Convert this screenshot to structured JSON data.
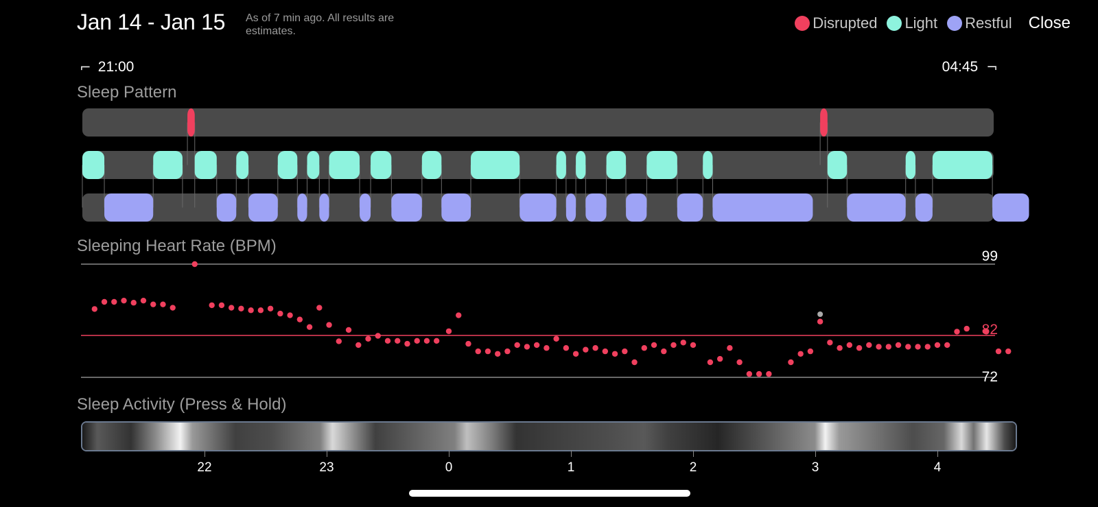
{
  "header": {
    "date_range": "Jan 14 - Jan 15",
    "as_of": "As of 7 min ago. All results are estimates.",
    "close_label": "Close"
  },
  "legend": [
    {
      "label": "Disrupted",
      "color": "#f0405e"
    },
    {
      "label": "Light",
      "color": "#8ef3de"
    },
    {
      "label": "Restful",
      "color": "#9ea3f6"
    }
  ],
  "time_range": {
    "start": "21:00",
    "end": "04:45"
  },
  "sleep_pattern": {
    "title": "Sleep Pattern",
    "segments_hours": {
      "disrupted": [
        [
          21.86,
          21.92
        ],
        [
          3.04,
          3.1
        ]
      ],
      "light": [
        [
          21.0,
          21.18
        ],
        [
          21.58,
          21.82
        ],
        [
          21.92,
          22.1
        ],
        [
          22.26,
          22.36
        ],
        [
          22.6,
          22.76
        ],
        [
          22.84,
          22.94
        ],
        [
          23.02,
          23.27
        ],
        [
          23.36,
          23.53
        ],
        [
          23.78,
          23.94
        ],
        [
          0.18,
          0.58
        ],
        [
          0.88,
          0.96
        ],
        [
          1.04,
          1.12
        ],
        [
          1.29,
          1.45
        ],
        [
          1.62,
          1.87
        ],
        [
          2.08,
          2.16
        ],
        [
          3.1,
          3.26
        ],
        [
          3.74,
          3.82
        ],
        [
          3.96,
          4.45
        ]
      ],
      "restful": [
        [
          21.18,
          21.58
        ],
        [
          22.1,
          22.26
        ],
        [
          22.36,
          22.6
        ],
        [
          22.76,
          22.84
        ],
        [
          22.94,
          23.02
        ],
        [
          23.27,
          23.36
        ],
        [
          23.53,
          23.78
        ],
        [
          23.94,
          0.18
        ],
        [
          0.58,
          0.88
        ],
        [
          0.96,
          1.04
        ],
        [
          1.12,
          1.29
        ],
        [
          1.45,
          1.62
        ],
        [
          1.87,
          2.08
        ],
        [
          2.16,
          2.98
        ],
        [
          3.26,
          3.74
        ],
        [
          3.82,
          3.96
        ],
        [
          4.45,
          4.75
        ]
      ]
    }
  },
  "heart_rate": {
    "title": "Sleeping Heart Rate (BPM)",
    "max_label": "99",
    "avg_label": "82",
    "min_label": "72",
    "max": 99,
    "avg": 82,
    "min": 72,
    "points": [
      [
        21.1,
        88.3
      ],
      [
        21.18,
        90
      ],
      [
        21.26,
        90
      ],
      [
        21.34,
        90.3
      ],
      [
        21.42,
        89.8
      ],
      [
        21.5,
        90.3
      ],
      [
        21.58,
        89.4
      ],
      [
        21.66,
        89.4
      ],
      [
        21.74,
        88.6
      ],
      [
        21.92,
        99
      ],
      [
        22.06,
        89.2
      ],
      [
        22.14,
        89.2
      ],
      [
        22.22,
        88.6
      ],
      [
        22.3,
        88.4
      ],
      [
        22.38,
        88
      ],
      [
        22.46,
        88
      ],
      [
        22.54,
        88.4
      ],
      [
        22.62,
        87.2
      ],
      [
        22.7,
        86.8
      ],
      [
        22.78,
        85.8
      ],
      [
        22.86,
        84
      ],
      [
        22.94,
        88.6
      ],
      [
        23.02,
        84.5
      ],
      [
        23.1,
        80.6
      ],
      [
        23.18,
        83.3
      ],
      [
        23.26,
        79.7
      ],
      [
        23.34,
        81.2
      ],
      [
        23.42,
        81.9
      ],
      [
        23.5,
        80.7
      ],
      [
        23.58,
        80.7
      ],
      [
        23.66,
        80
      ],
      [
        23.74,
        80.7
      ],
      [
        23.82,
        80.7
      ],
      [
        23.9,
        80.7
      ],
      [
        0.0,
        83
      ],
      [
        0.08,
        86.8
      ],
      [
        0.16,
        80
      ],
      [
        0.24,
        78.2
      ],
      [
        0.32,
        78.2
      ],
      [
        0.4,
        77.6
      ],
      [
        0.48,
        78.2
      ],
      [
        0.56,
        79.7
      ],
      [
        0.64,
        79.3
      ],
      [
        0.72,
        79.7
      ],
      [
        0.8,
        79
      ],
      [
        0.88,
        81.2
      ],
      [
        0.96,
        79
      ],
      [
        1.04,
        77.6
      ],
      [
        1.12,
        78.6
      ],
      [
        1.2,
        79
      ],
      [
        1.28,
        78.2
      ],
      [
        1.36,
        77.6
      ],
      [
        1.44,
        78.2
      ],
      [
        1.52,
        75.6
      ],
      [
        1.6,
        79
      ],
      [
        1.68,
        79.7
      ],
      [
        1.76,
        78.2
      ],
      [
        1.84,
        79.7
      ],
      [
        1.92,
        80.3
      ],
      [
        2.0,
        79.7
      ],
      [
        2.14,
        75.6
      ],
      [
        2.22,
        76.4
      ],
      [
        2.3,
        79
      ],
      [
        2.38,
        75.6
      ],
      [
        2.46,
        72.8
      ],
      [
        2.54,
        72.8
      ],
      [
        2.62,
        72.8
      ],
      [
        2.8,
        75.6
      ],
      [
        2.88,
        77.6
      ],
      [
        2.96,
        78.2
      ],
      [
        3.04,
        85.3
      ],
      [
        3.12,
        80.3
      ],
      [
        3.2,
        79
      ],
      [
        3.28,
        79.7
      ],
      [
        3.36,
        79
      ],
      [
        3.44,
        79.7
      ],
      [
        3.52,
        79.3
      ],
      [
        3.6,
        79.3
      ],
      [
        3.68,
        79.7
      ],
      [
        3.76,
        79.3
      ],
      [
        3.84,
        79.3
      ],
      [
        3.92,
        79.3
      ],
      [
        4.0,
        79.7
      ],
      [
        4.08,
        79.7
      ],
      [
        4.16,
        82.9
      ],
      [
        4.24,
        83.6
      ],
      [
        4.4,
        82.9
      ],
      [
        4.5,
        78.2
      ],
      [
        4.58,
        78.2
      ]
    ]
  },
  "activity": {
    "title": "Sleep Activity (Press & Hold)",
    "x_ticks": [
      "22",
      "23",
      "0",
      "1",
      "2",
      "3",
      "4"
    ]
  }
}
